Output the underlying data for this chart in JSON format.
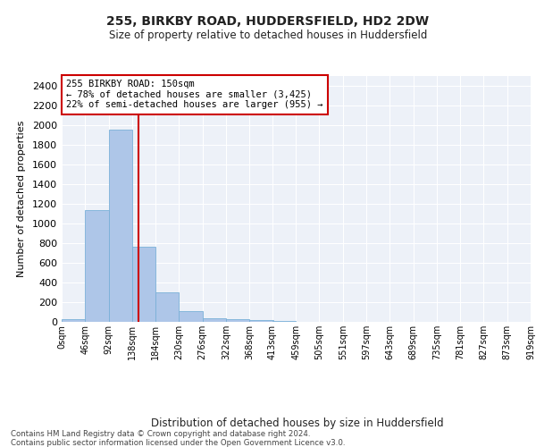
{
  "title1": "255, BIRKBY ROAD, HUDDERSFIELD, HD2 2DW",
  "title2": "Size of property relative to detached houses in Huddersfield",
  "xlabel": "Distribution of detached houses by size in Huddersfield",
  "ylabel": "Number of detached properties",
  "bin_edges": [
    0,
    46,
    92,
    138,
    184,
    230,
    276,
    322,
    368,
    413,
    459,
    505,
    551,
    597,
    643,
    689,
    735,
    781,
    827,
    873,
    919
  ],
  "bar_values": [
    30,
    1140,
    1950,
    760,
    300,
    105,
    40,
    30,
    20,
    10,
    0,
    0,
    0,
    0,
    0,
    0,
    0,
    0,
    0,
    0
  ],
  "tick_labels": [
    "0sqm",
    "46sqm",
    "92sqm",
    "138sqm",
    "184sqm",
    "230sqm",
    "276sqm",
    "322sqm",
    "368sqm",
    "413sqm",
    "459sqm",
    "505sqm",
    "551sqm",
    "597sqm",
    "643sqm",
    "689sqm",
    "735sqm",
    "781sqm",
    "827sqm",
    "873sqm",
    "919sqm"
  ],
  "property_size": 150,
  "annotation_title": "255 BIRKBY ROAD: 150sqm",
  "annotation_line1": "← 78% of detached houses are smaller (3,425)",
  "annotation_line2": "22% of semi-detached houses are larger (955) →",
  "bar_color": "#aec6e8",
  "bar_edge_color": "#7ab0d8",
  "line_color": "#cc0000",
  "annotation_box_color": "#ffffff",
  "annotation_box_edge": "#cc0000",
  "background_color": "#edf1f8",
  "ylim": [
    0,
    2500
  ],
  "yticks": [
    0,
    200,
    400,
    600,
    800,
    1000,
    1200,
    1400,
    1600,
    1800,
    2000,
    2200,
    2400
  ],
  "footer1": "Contains HM Land Registry data © Crown copyright and database right 2024.",
  "footer2": "Contains public sector information licensed under the Open Government Licence v3.0."
}
